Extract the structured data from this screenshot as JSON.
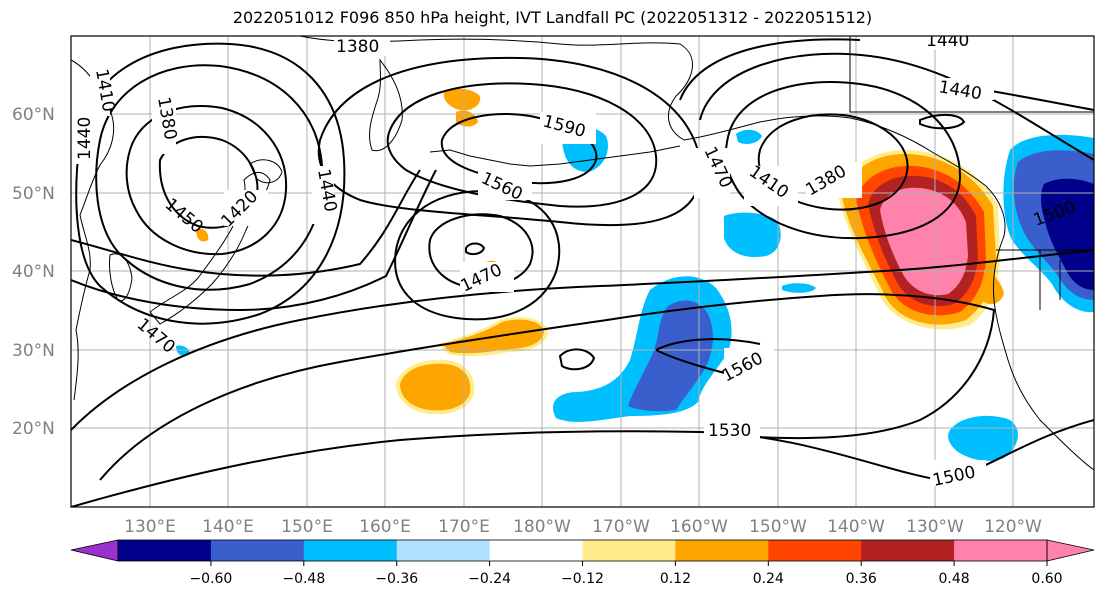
{
  "title": "2022051012 F096 850 hPa height, IVT Landfall PC (2022051312 - 2022051512)",
  "lat_labels": [
    "60°N",
    "50°N",
    "40°N",
    "30°N",
    "20°N"
  ],
  "lon_labels": [
    "130°E",
    "140°E",
    "150°E",
    "160°E",
    "170°E",
    "180°W",
    "170°W",
    "160°W",
    "150°W",
    "140°W",
    "130°W",
    "120°W"
  ],
  "colorbar": {
    "colors": [
      "#9932cc",
      "#00008b",
      "#3a5fcd",
      "#00bfff",
      "#b0e2ff",
      "#ffffff",
      "#ffec8b",
      "#ffa500",
      "#ff4500",
      "#b22222",
      "#ff82ab",
      "#ff82ab"
    ],
    "tick_labels": [
      "−0.60",
      "−0.48",
      "−0.36",
      "−0.24",
      "−0.12",
      "0.12",
      "0.24",
      "0.36",
      "0.48",
      "0.60"
    ]
  },
  "contour_labels": [
    "1380",
    "1410",
    "1440",
    "1380",
    "1450",
    "1420",
    "1440",
    "1590",
    "1560",
    "1470",
    "1470",
    "1410",
    "1380",
    "1440",
    "1440",
    "1500",
    "1560",
    "1530",
    "1500",
    "1470"
  ]
}
